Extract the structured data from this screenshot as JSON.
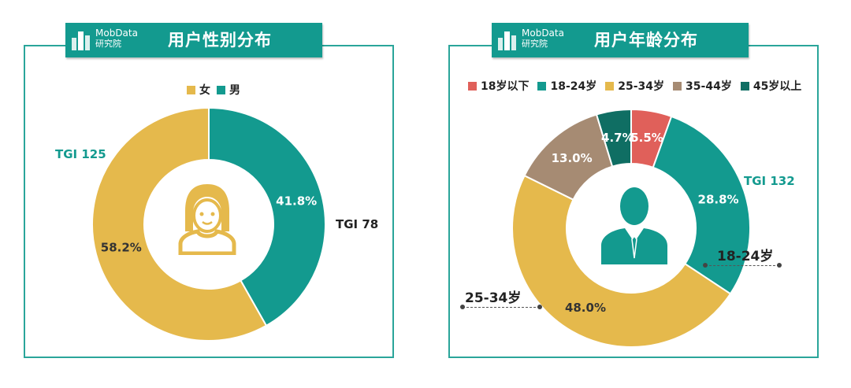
{
  "colors": {
    "teal": "#139a8f",
    "gold": "#e5b94c",
    "red": "#e0605a",
    "brown": "#a68b73",
    "dark_teal": "#0f6e63",
    "icon": "#e5b94c",
    "person_icon": "#139a8f"
  },
  "brand": {
    "name": "MobData",
    "sub": "研究院"
  },
  "gender_panel": {
    "title": "用户性别分布",
    "tgi_female": "TGI 125",
    "tgi_male": "TGI 78",
    "icon": "female-avatar-icon"
  },
  "age_panel": {
    "title": "用户年龄分布",
    "tgi_18_24": "TGI 132",
    "callout_18_24": "18-24岁",
    "callout_25_34": "25-34岁",
    "icon": "businessman-icon"
  },
  "chart_data": [
    {
      "type": "pie",
      "title": "用户性别分布",
      "donut": true,
      "categories": [
        "男",
        "女"
      ],
      "values": [
        41.8,
        58.2
      ],
      "value_labels": [
        "41.8%",
        "58.2%"
      ],
      "legend": [
        "女",
        "男"
      ],
      "legend_colors": [
        "#e5b94c",
        "#139a8f"
      ],
      "colors": [
        "#139a8f",
        "#e5b94c"
      ],
      "legend_position": "top"
    },
    {
      "type": "pie",
      "title": "用户年龄分布",
      "donut": true,
      "categories": [
        "18岁以下",
        "18-24岁",
        "25-34岁",
        "35-44岁",
        "45岁以上"
      ],
      "values": [
        5.5,
        28.8,
        48.0,
        13.0,
        4.7
      ],
      "value_labels": [
        "5.5%",
        "28.8%",
        "48.0%",
        "13.0%",
        "4.7%"
      ],
      "colors": [
        "#e0605a",
        "#139a8f",
        "#e5b94c",
        "#a68b73",
        "#0f6e63"
      ],
      "legend_position": "top"
    }
  ]
}
